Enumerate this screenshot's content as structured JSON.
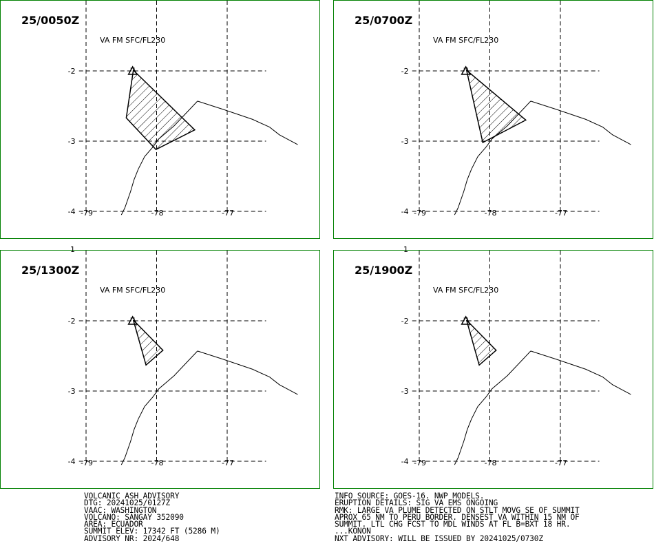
{
  "panels": [
    {
      "time": "25/0050Z",
      "label": "VA FM SFC/FL230",
      "ash": [
        [
          -78.33,
          -1.99
        ],
        [
          -78.43,
          -2.67
        ],
        [
          -78.01,
          -3.12
        ],
        [
          -77.46,
          -2.84
        ]
      ]
    },
    {
      "time": "25/0700Z",
      "label": "VA FM SFC/FL230",
      "ash": [
        [
          -78.33,
          -1.99
        ],
        [
          -78.1,
          -3.02
        ],
        [
          -77.49,
          -2.7
        ]
      ]
    },
    {
      "time": "25/1300Z",
      "label": "VA FM SFC/FL230",
      "ash": [
        [
          -78.33,
          -1.99
        ],
        [
          -78.15,
          -2.63
        ],
        [
          -77.91,
          -2.42
        ]
      ]
    },
    {
      "time": "25/1900Z",
      "label": "VA FM SFC/FL230",
      "ash": [
        [
          -78.33,
          -1.99
        ],
        [
          -78.15,
          -2.63
        ],
        [
          -77.91,
          -2.42
        ]
      ]
    }
  ],
  "map": {
    "lon_range": [
      -79.2,
      -76.4
    ],
    "lat_range": [
      -4.05,
      -1.45
    ],
    "grid_lons": [
      -79,
      -78,
      -77
    ],
    "grid_lats": [
      -2,
      -3,
      -4
    ],
    "lon_tick_labels": [
      "-79",
      "-78",
      "-77"
    ],
    "lat_tick_labels": [
      "-2",
      "-3",
      "-4"
    ],
    "top_lat_label": "1",
    "volcano": {
      "name": "SANGAY",
      "lon": -78.34,
      "lat": -2.0
    },
    "border": [
      [
        -77.42,
        -2.43
      ],
      [
        -77.05,
        -2.55
      ],
      [
        -76.64,
        -2.69
      ],
      [
        -76.4,
        -2.8
      ],
      [
        -76.26,
        -2.91
      ],
      [
        -76.0,
        -3.05
      ]
    ],
    "border_ext": [
      [
        -77.42,
        -2.43
      ],
      [
        -77.75,
        -2.78
      ],
      [
        -77.97,
        -2.97
      ],
      [
        -78.05,
        -3.08
      ],
      [
        -78.17,
        -3.22
      ],
      [
        -78.26,
        -3.4
      ],
      [
        -78.32,
        -3.55
      ],
      [
        -78.37,
        -3.72
      ],
      [
        -78.45,
        -3.95
      ],
      [
        -78.5,
        -4.05
      ]
    ],
    "colors": {
      "frame": "#008000",
      "grid": "#000000",
      "lines": "#000000"
    }
  },
  "info_left": [
    "VOLCANIC ASH ADVISORY",
    "DTG: 20241025/0127Z",
    "VAAC: WASHINGTON",
    "VOLCANO: SANGAY 352090",
    "AREA: ECUADOR",
    "SUMMIT ELEV: 17342 FT (5286 M)",
    "ADVISORY NR: 2024/648"
  ],
  "info_right": [
    "INFO SOURCE: GOES-16. NWP MODELS.",
    "ERUPTION DETAILS: SIG VA EMS ONGOING",
    "RMK: LARGE VA PLUME DETECTED ON STLT MOVG SE OF SUMMIT",
    "APROX 65 NM TO PERU BORDER. DENSEST VA WITHIN 15 NM OF",
    "SUMMIT. LTL CHG FCST TO MDL WINDS AT FL B=BXT 18 HR.",
    "...KONON",
    "NXT ADVISORY: WILL BE ISSUED BY 20241025/0730Z"
  ]
}
